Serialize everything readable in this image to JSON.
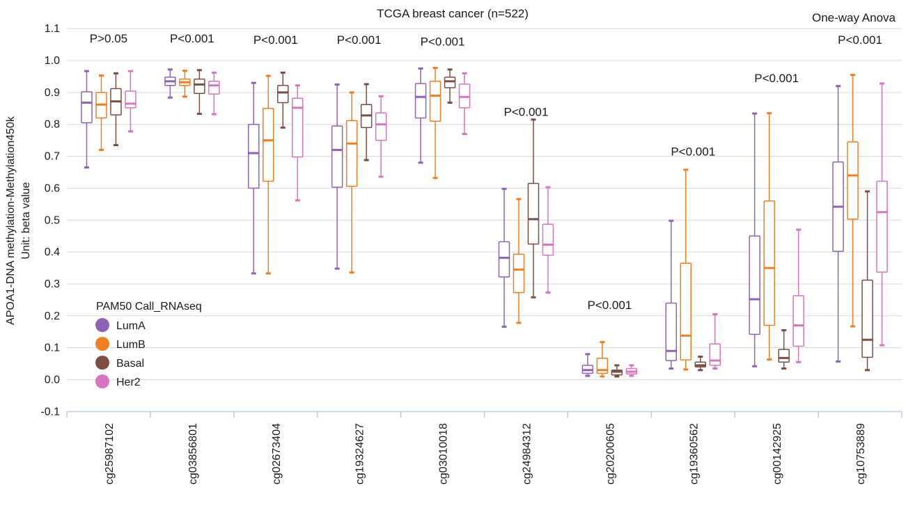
{
  "chart_data": {
    "type": "boxplot",
    "title": "TCGA breast cancer (n=522)",
    "test_label": "One-way Anova",
    "ylabel_lines": [
      "APOA1-DNA methylation-Methylation450k",
      "Unit: beta value"
    ],
    "ylim": [
      -0.1,
      1.1
    ],
    "yticks": [
      -0.1,
      0.0,
      0.1,
      0.2,
      0.3,
      0.4,
      0.5,
      0.6,
      0.7,
      0.8,
      0.9,
      1.0,
      1.1
    ],
    "grid": true,
    "legend": {
      "title": "PAM50 Call_RNAseq",
      "position": "bottom-left",
      "entries": [
        "LumA",
        "LumB",
        "Basal",
        "Her2"
      ]
    },
    "colors": {
      "LumA": "#8e62b5",
      "LumB": "#f07f22",
      "Basal": "#7a4e44",
      "Her2": "#d874bf",
      "grid": "#d9d9d9",
      "axis": "#b8cbe0"
    },
    "series_names": [
      "LumA",
      "LumB",
      "Basal",
      "Her2"
    ],
    "categories": [
      {
        "label": "cg25987102",
        "pvalue": "P>0.05",
        "p_y": 1.07,
        "boxes": [
          [
            0.665,
            0.805,
            0.868,
            0.902,
            0.967
          ],
          [
            0.72,
            0.82,
            0.862,
            0.9,
            0.953
          ],
          [
            0.735,
            0.83,
            0.872,
            0.912,
            0.96
          ],
          [
            0.778,
            0.852,
            0.865,
            0.904,
            0.967
          ]
        ]
      },
      {
        "label": "cg03856801",
        "pvalue": "P<0.001",
        "p_y": 1.07,
        "boxes": [
          [
            0.884,
            0.922,
            0.935,
            0.948,
            0.972
          ],
          [
            0.887,
            0.922,
            0.932,
            0.942,
            0.968
          ],
          [
            0.833,
            0.897,
            0.925,
            0.942,
            0.97
          ],
          [
            0.832,
            0.895,
            0.922,
            0.935,
            0.962
          ]
        ]
      },
      {
        "label": "cg02673404",
        "pvalue": "P<0.001",
        "p_y": 1.065,
        "boxes": [
          [
            0.333,
            0.6,
            0.71,
            0.8,
            0.93
          ],
          [
            0.333,
            0.622,
            0.75,
            0.85,
            0.952
          ],
          [
            0.79,
            0.868,
            0.9,
            0.922,
            0.962
          ],
          [
            0.562,
            0.698,
            0.852,
            0.882,
            0.922
          ]
        ]
      },
      {
        "label": "cg19324627",
        "pvalue": "P<0.001",
        "p_y": 1.065,
        "boxes": [
          [
            0.348,
            0.603,
            0.72,
            0.795,
            0.925
          ],
          [
            0.336,
            0.606,
            0.74,
            0.812,
            0.9
          ],
          [
            0.688,
            0.79,
            0.828,
            0.862,
            0.926
          ],
          [
            0.636,
            0.75,
            0.8,
            0.836,
            0.888
          ]
        ]
      },
      {
        "label": "cg03010018",
        "pvalue": "P<0.001",
        "p_y": 1.06,
        "boxes": [
          [
            0.68,
            0.82,
            0.886,
            0.928,
            0.975
          ],
          [
            0.632,
            0.81,
            0.89,
            0.935,
            0.977
          ],
          [
            0.868,
            0.915,
            0.935,
            0.948,
            0.972
          ],
          [
            0.77,
            0.852,
            0.886,
            0.926,
            0.96
          ]
        ]
      },
      {
        "label": "cg24984312",
        "pvalue": "P<0.001",
        "p_y": 0.84,
        "boxes": [
          [
            0.166,
            0.322,
            0.382,
            0.432,
            0.598
          ],
          [
            0.178,
            0.273,
            0.345,
            0.393,
            0.566
          ],
          [
            0.258,
            0.425,
            0.503,
            0.615,
            0.815
          ],
          [
            0.273,
            0.39,
            0.423,
            0.487,
            0.603
          ]
        ]
      },
      {
        "label": "cg20200605",
        "pvalue": "P<0.001",
        "p_y": 0.235,
        "boxes": [
          [
            0.012,
            0.02,
            0.03,
            0.045,
            0.08
          ],
          [
            0.01,
            0.02,
            0.03,
            0.067,
            0.118
          ],
          [
            0.01,
            0.015,
            0.025,
            0.03,
            0.045
          ],
          [
            0.012,
            0.018,
            0.025,
            0.035,
            0.045
          ]
        ]
      },
      {
        "label": "cg19360562",
        "pvalue": "P<0.001",
        "p_y": 0.715,
        "boxes": [
          [
            0.035,
            0.06,
            0.09,
            0.24,
            0.498
          ],
          [
            0.032,
            0.062,
            0.138,
            0.365,
            0.658
          ],
          [
            0.03,
            0.04,
            0.045,
            0.055,
            0.072
          ],
          [
            0.035,
            0.045,
            0.06,
            0.112,
            0.205
          ]
        ]
      },
      {
        "label": "cg00142925",
        "pvalue": "P<0.001",
        "p_y": 0.945,
        "boxes": [
          [
            0.042,
            0.142,
            0.252,
            0.45,
            0.834
          ],
          [
            0.063,
            0.17,
            0.35,
            0.56,
            0.835
          ],
          [
            0.035,
            0.055,
            0.068,
            0.095,
            0.155
          ],
          [
            0.055,
            0.105,
            0.17,
            0.263,
            0.47
          ]
        ]
      },
      {
        "label": "cg10753889",
        "pvalue": "P<0.001",
        "p_y": 1.065,
        "boxes": [
          [
            0.057,
            0.402,
            0.542,
            0.682,
            0.92
          ],
          [
            0.167,
            0.503,
            0.64,
            0.745,
            0.955
          ],
          [
            0.03,
            0.07,
            0.125,
            0.312,
            0.59
          ],
          [
            0.108,
            0.337,
            0.525,
            0.622,
            0.928
          ]
        ]
      }
    ]
  }
}
